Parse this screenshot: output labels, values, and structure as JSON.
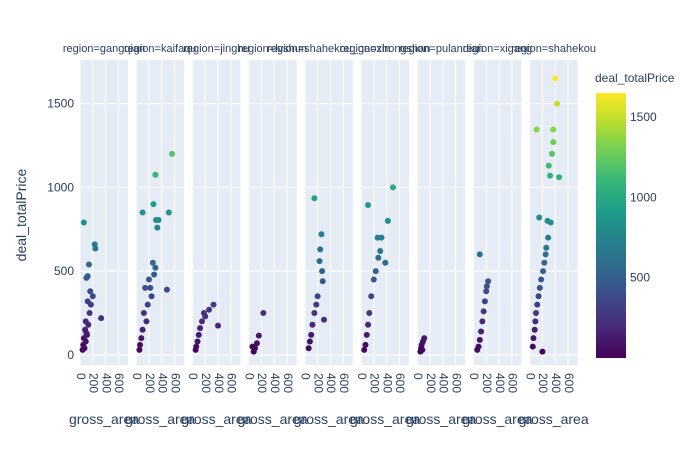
{
  "chart_data": {
    "type": "scatter",
    "ylabel": "deal_totalPrice",
    "xlabel": "gross_area",
    "xlim": [
      0,
      750
    ],
    "ylim": [
      -60,
      1760
    ],
    "xticks": [
      0,
      200,
      400,
      600
    ],
    "yticks": [
      0,
      500,
      1000,
      1500
    ],
    "colorbar": {
      "title": "deal_totalPrice",
      "ticks": [
        500,
        1000,
        1500
      ],
      "range": [
        0,
        1650
      ],
      "colorscale": "viridis",
      "stops": [
        "#440154",
        "#482878",
        "#3e4989",
        "#31688e",
        "#26828e",
        "#1f9e89",
        "#35b779",
        "#6ece58",
        "#b5de2b",
        "#fde725"
      ]
    },
    "facets": [
      {
        "title": "region=gangqian",
        "points": [
          [
            60,
            790
          ],
          [
            230,
            660
          ],
          [
            240,
            635
          ],
          [
            140,
            540
          ],
          [
            120,
            470
          ],
          [
            100,
            460
          ],
          [
            160,
            380
          ],
          [
            330,
            220
          ],
          [
            120,
            320
          ],
          [
            150,
            250
          ],
          [
            90,
            200
          ],
          [
            80,
            150
          ],
          [
            60,
            100
          ],
          [
            50,
            60
          ],
          [
            40,
            30
          ],
          [
            70,
            40
          ],
          [
            110,
            120
          ],
          [
            130,
            180
          ],
          [
            170,
            300
          ],
          [
            200,
            350
          ],
          [
            90,
            80
          ],
          [
            100,
            130
          ]
        ]
      },
      {
        "title": "region=kaifaqu",
        "points": [
          [
            560,
            1200
          ],
          [
            300,
            1075
          ],
          [
            270,
            900
          ],
          [
            100,
            850
          ],
          [
            510,
            850
          ],
          [
            350,
            805
          ],
          [
            310,
            805
          ],
          [
            330,
            760
          ],
          [
            260,
            550
          ],
          [
            300,
            520
          ],
          [
            480,
            390
          ],
          [
            140,
            400
          ],
          [
            200,
            450
          ],
          [
            240,
            350
          ],
          [
            180,
            300
          ],
          [
            120,
            250
          ],
          [
            160,
            200
          ],
          [
            100,
            150
          ],
          [
            80,
            100
          ],
          [
            60,
            60
          ],
          [
            50,
            30
          ],
          [
            220,
            400
          ],
          [
            280,
            480
          ]
        ]
      },
      {
        "title": "region=jinghu",
        "points": [
          [
            330,
            300
          ],
          [
            260,
            270
          ],
          [
            400,
            175
          ],
          [
            200,
            230
          ],
          [
            150,
            200
          ],
          [
            120,
            160
          ],
          [
            100,
            120
          ],
          [
            80,
            80
          ],
          [
            60,
            50
          ],
          [
            50,
            30
          ],
          [
            180,
            250
          ]
        ]
      },
      {
        "title": "region=lvshun",
        "points": [
          [
            230,
            250
          ],
          [
            160,
            115
          ],
          [
            130,
            70
          ],
          [
            100,
            40
          ],
          [
            80,
            20
          ],
          [
            60,
            50
          ]
        ]
      },
      {
        "title": "region=shahekou_gaoxin",
        "points": [
          [
            150,
            935
          ],
          [
            260,
            720
          ],
          [
            240,
            630
          ],
          [
            230,
            560
          ],
          [
            270,
            500
          ],
          [
            280,
            440
          ],
          [
            300,
            210
          ],
          [
            200,
            350
          ],
          [
            150,
            250
          ],
          [
            120,
            180
          ],
          [
            100,
            120
          ],
          [
            80,
            80
          ],
          [
            60,
            40
          ],
          [
            180,
            300
          ]
        ]
      },
      {
        "title": "region=zhongshan",
        "points": [
          [
            500,
            1000
          ],
          [
            110,
            895
          ],
          [
            320,
            700
          ],
          [
            420,
            800
          ],
          [
            260,
            700
          ],
          [
            300,
            620
          ],
          [
            270,
            580
          ],
          [
            380,
            550
          ],
          [
            200,
            450
          ],
          [
            160,
            350
          ],
          [
            130,
            250
          ],
          [
            110,
            180
          ],
          [
            90,
            120
          ],
          [
            70,
            60
          ],
          [
            50,
            30
          ],
          [
            230,
            500
          ]
        ]
      },
      {
        "title": "region=pulandian",
        "points": [
          [
            110,
            100
          ],
          [
            90,
            80
          ],
          [
            70,
            60
          ],
          [
            60,
            40
          ],
          [
            50,
            20
          ],
          [
            80,
            30
          ]
        ]
      },
      {
        "title": "region=xigang",
        "points": [
          [
            100,
            600
          ],
          [
            230,
            440
          ],
          [
            200,
            380
          ],
          [
            180,
            320
          ],
          [
            160,
            260
          ],
          [
            140,
            200
          ],
          [
            120,
            140
          ],
          [
            100,
            90
          ],
          [
            80,
            50
          ],
          [
            60,
            30
          ],
          [
            210,
            410
          ]
        ]
      },
      {
        "title": "region=shahekou",
        "points": [
          [
            400,
            1650
          ],
          [
            430,
            1500
          ],
          [
            110,
            1345
          ],
          [
            370,
            1345
          ],
          [
            370,
            1270
          ],
          [
            350,
            1200
          ],
          [
            300,
            1130
          ],
          [
            320,
            1070
          ],
          [
            460,
            1060
          ],
          [
            150,
            820
          ],
          [
            330,
            790
          ],
          [
            280,
            800
          ],
          [
            290,
            700
          ],
          [
            260,
            640
          ],
          [
            250,
            600
          ],
          [
            230,
            550
          ],
          [
            210,
            500
          ],
          [
            180,
            450
          ],
          [
            160,
            400
          ],
          [
            140,
            350
          ],
          [
            120,
            300
          ],
          [
            100,
            250
          ],
          [
            90,
            200
          ],
          [
            80,
            150
          ],
          [
            60,
            100
          ],
          [
            50,
            50
          ],
          [
            200,
            20
          ]
        ]
      }
    ]
  }
}
